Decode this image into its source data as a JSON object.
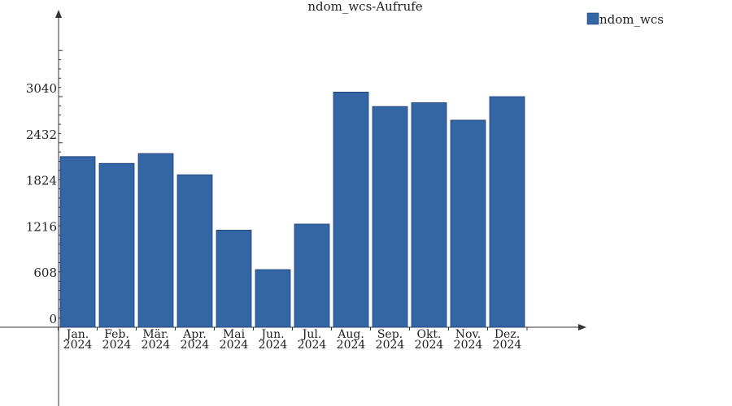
{
  "chart_data": {
    "type": "bar",
    "title": "ndom_wcs-Aufrufe",
    "categories": [
      [
        "Jan.",
        "2024"
      ],
      [
        "Feb.",
        "2024"
      ],
      [
        "Mär.",
        "2024"
      ],
      [
        "Apr.",
        "2024"
      ],
      [
        "Mai",
        "2024"
      ],
      [
        "Jun.",
        "2024"
      ],
      [
        "Jul.",
        "2024"
      ],
      [
        "Aug.",
        "2024"
      ],
      [
        "Sep.",
        "2024"
      ],
      [
        "Okt.",
        "2024"
      ],
      [
        "Nov.",
        "2024"
      ],
      [
        "Dez.",
        "2024"
      ]
    ],
    "series": [
      {
        "name": "ndom_wcs",
        "color": "#3465a4",
        "values": [
          2250,
          2160,
          2290,
          2010,
          1280,
          760,
          1360,
          3100,
          2910,
          2960,
          2730,
          3040
        ]
      }
    ],
    "yticks": [
      "0",
      "608",
      "1216",
      "1824",
      "2432",
      "3040"
    ],
    "ylim": [
      0,
      3040
    ],
    "legend_position": "top-right",
    "grid": false
  }
}
